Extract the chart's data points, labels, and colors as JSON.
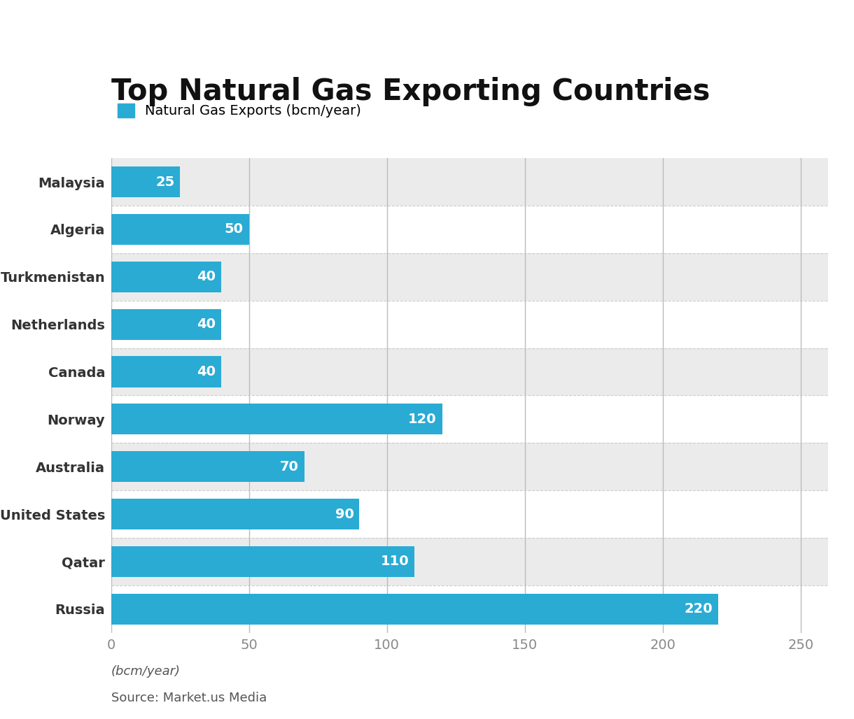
{
  "title": "Top Natural Gas Exporting Countries",
  "legend_label": "Natural Gas Exports (bcm/year)",
  "countries": [
    "Russia",
    "Qatar",
    "United States",
    "Australia",
    "Norway",
    "Canada",
    "Netherlands",
    "Turkmenistan",
    "Algeria",
    "Malaysia"
  ],
  "values": [
    220,
    110,
    90,
    70,
    120,
    40,
    40,
    40,
    50,
    25
  ],
  "bar_color": "#29ABD4",
  "bar_label_color": "#ffffff",
  "title_fontsize": 30,
  "legend_fontsize": 14,
  "tick_fontsize": 14,
  "bar_label_fontsize": 14,
  "xlim": [
    0,
    260
  ],
  "xticks": [
    0,
    50,
    100,
    150,
    200,
    250
  ],
  "xlabel_bottom": "(bcm/year)",
  "source": "Source: Market.us Media",
  "background_color": "#ffffff",
  "plot_bg_odd": "#ebebeb",
  "plot_bg_even": "#ffffff",
  "grid_color": "#bbbbbb"
}
